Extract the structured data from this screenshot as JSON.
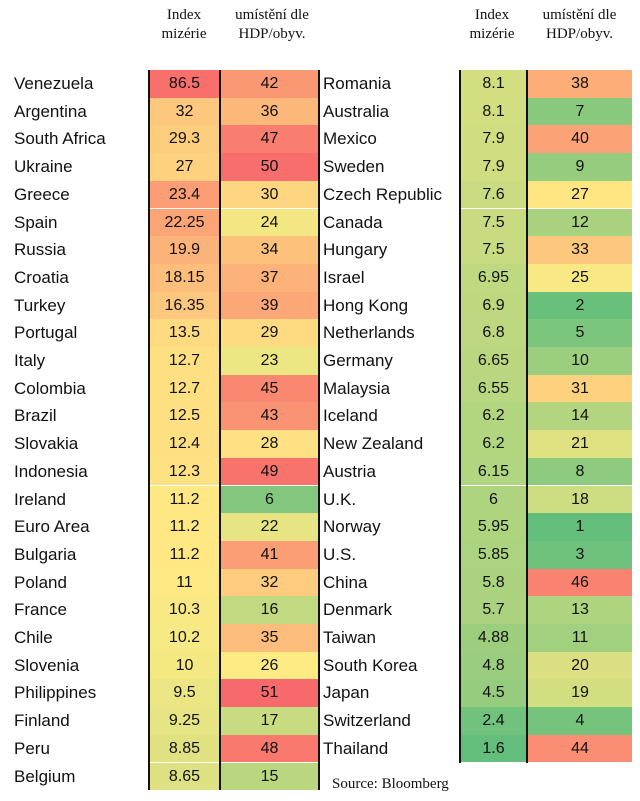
{
  "colors": {
    "red": "#f8696b",
    "yellow": "#ffeb84",
    "green": "#63be7b"
  },
  "chart_data": {
    "type": "table",
    "columns": [
      "Index mizérie",
      "umístění dle HDP/obyv."
    ],
    "left": [
      {
        "country": "Venezuela",
        "index": "86.5",
        "rank": "42"
      },
      {
        "country": "Argentina",
        "index": "32",
        "rank": "36"
      },
      {
        "country": "South Africa",
        "index": "29.3",
        "rank": "47"
      },
      {
        "country": "Ukraine",
        "index": "27",
        "rank": "50"
      },
      {
        "country": "Greece",
        "index": "23.4",
        "rank": "30"
      },
      {
        "country": "Spain",
        "index": "22.25",
        "rank": "24"
      },
      {
        "country": "Russia",
        "index": "19.9",
        "rank": "34"
      },
      {
        "country": "Croatia",
        "index": "18.15",
        "rank": "37"
      },
      {
        "country": "Turkey",
        "index": "16.35",
        "rank": "39"
      },
      {
        "country": "Portugal",
        "index": "13.5",
        "rank": "29"
      },
      {
        "country": "Italy",
        "index": "12.7",
        "rank": "23"
      },
      {
        "country": "Colombia",
        "index": "12.7",
        "rank": "45"
      },
      {
        "country": "Brazil",
        "index": "12.5",
        "rank": "43"
      },
      {
        "country": "Slovakia",
        "index": "12.4",
        "rank": "28"
      },
      {
        "country": "Indonesia",
        "index": "12.3",
        "rank": "49"
      },
      {
        "country": "Ireland",
        "index": "11.2",
        "rank": "6"
      },
      {
        "country": "Euro Area",
        "index": "11.2",
        "rank": "22"
      },
      {
        "country": "Bulgaria",
        "index": "11.2",
        "rank": "41"
      },
      {
        "country": "Poland",
        "index": "11",
        "rank": "32"
      },
      {
        "country": "France",
        "index": "10.3",
        "rank": "16"
      },
      {
        "country": "Chile",
        "index": "10.2",
        "rank": "35"
      },
      {
        "country": "Slovenia",
        "index": "10",
        "rank": "26"
      },
      {
        "country": "Philippines",
        "index": "9.5",
        "rank": "51"
      },
      {
        "country": "Finland",
        "index": "9.25",
        "rank": "17"
      },
      {
        "country": "Peru",
        "index": "8.85",
        "rank": "48"
      },
      {
        "country": "Belgium",
        "index": "8.65",
        "rank": "15"
      }
    ],
    "right": [
      {
        "country": "Romania",
        "index": "8.1",
        "rank": "38"
      },
      {
        "country": "Australia",
        "index": "8.1",
        "rank": "7"
      },
      {
        "country": "Mexico",
        "index": "7.9",
        "rank": "40"
      },
      {
        "country": "Sweden",
        "index": "7.9",
        "rank": "9"
      },
      {
        "country": "Czech Republic",
        "index": "7.6",
        "rank": "27"
      },
      {
        "country": "Canada",
        "index": "7.5",
        "rank": "12"
      },
      {
        "country": "Hungary",
        "index": "7.5",
        "rank": "33"
      },
      {
        "country": "Israel",
        "index": "6.95",
        "rank": "25"
      },
      {
        "country": "Hong Kong",
        "index": "6.9",
        "rank": "2"
      },
      {
        "country": "Netherlands",
        "index": "6.8",
        "rank": "5"
      },
      {
        "country": "Germany",
        "index": "6.65",
        "rank": "10"
      },
      {
        "country": "Malaysia",
        "index": "6.55",
        "rank": "31"
      },
      {
        "country": "Iceland",
        "index": "6.2",
        "rank": "14"
      },
      {
        "country": "New Zealand",
        "index": "6.2",
        "rank": "21"
      },
      {
        "country": "Austria",
        "index": "6.15",
        "rank": "8"
      },
      {
        "country": "U.K.",
        "index": "6",
        "rank": "18"
      },
      {
        "country": "Norway",
        "index": "5.95",
        "rank": "1"
      },
      {
        "country": "U.S.",
        "index": "5.85",
        "rank": "3"
      },
      {
        "country": "China",
        "index": "5.8",
        "rank": "46"
      },
      {
        "country": "Denmark",
        "index": "5.7",
        "rank": "13"
      },
      {
        "country": "Taiwan",
        "index": "4.88",
        "rank": "11"
      },
      {
        "country": "South Korea",
        "index": "4.8",
        "rank": "20"
      },
      {
        "country": "Japan",
        "index": "4.5",
        "rank": "19"
      },
      {
        "country": "Switzerland",
        "index": "2.4",
        "rank": "4"
      },
      {
        "country": "Thailand",
        "index": "1.6",
        "rank": "44"
      }
    ],
    "source": "Source: Bloomberg"
  }
}
